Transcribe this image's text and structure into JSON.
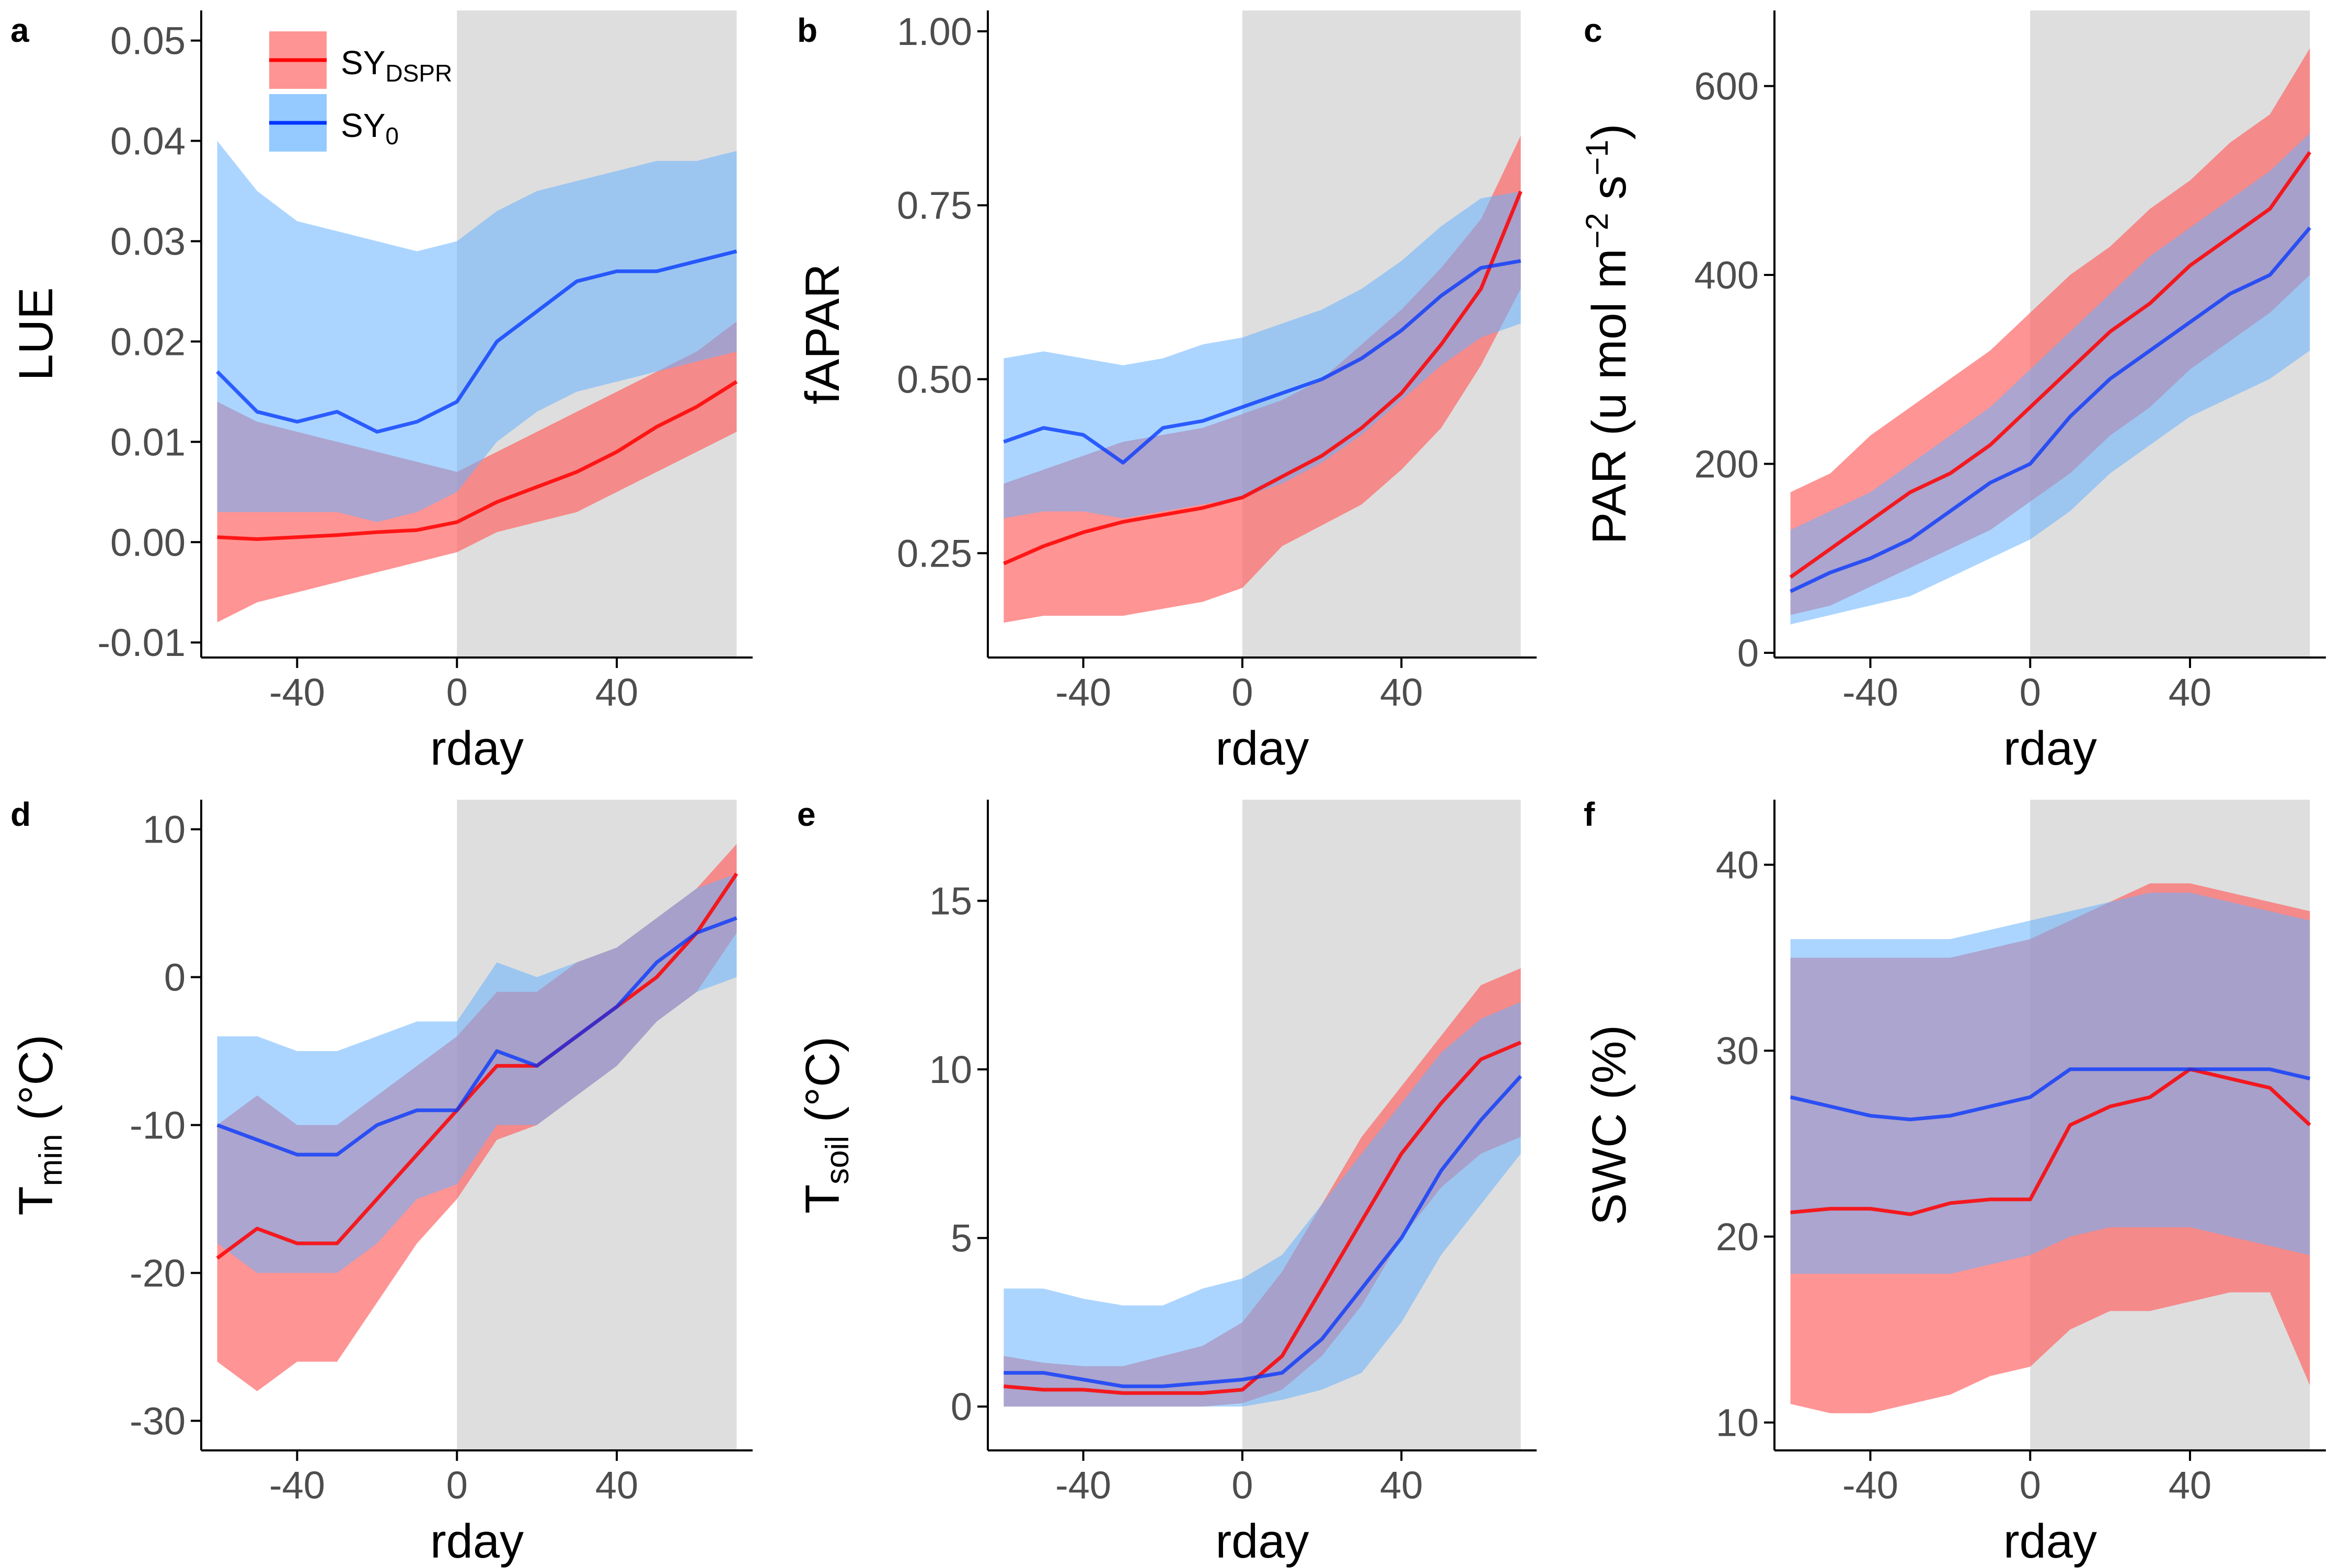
{
  "figure": {
    "colors": {
      "sy_dspr": "#ff0000",
      "sy_0": "#0033ff",
      "sy_dspr_band": "#ff6666",
      "sy_0_band": "#66b3ff",
      "shade": "#dedede",
      "axis": "#000000",
      "tick_text": "#4d4d4d"
    },
    "legend": {
      "sy_dspr_label": "SY",
      "sy_dspr_sub": "DSPR",
      "sy_0_label": "SY",
      "sy_0_sub": "0"
    }
  },
  "chart_data": [
    {
      "panel": "a",
      "type": "line",
      "xlabel": "rday",
      "ylabel": "LUE",
      "xlim": [
        -64,
        74
      ],
      "ylim": [
        -0.0115,
        0.053
      ],
      "shade": [
        0,
        70
      ],
      "xticks": [
        -40,
        0,
        40
      ],
      "xtick_labels": [
        "-40",
        "0",
        "40"
      ],
      "yticks": [
        -0.01,
        0,
        0.01,
        0.02,
        0.03,
        0.04,
        0.05
      ],
      "ytick_labels": [
        "-0.01",
        "0.00",
        "0.01",
        "0.02",
        "0.03",
        "0.04",
        "0.05"
      ],
      "grid": false,
      "legend_position": "top-left",
      "x": [
        -60,
        -50,
        -40,
        -30,
        -20,
        -10,
        0,
        10,
        20,
        30,
        40,
        50,
        60,
        70
      ],
      "series": [
        {
          "name": "SY_DSPR",
          "mean": [
            0.0005,
            0.0003,
            0.0005,
            0.0007,
            0.001,
            0.0012,
            0.002,
            0.004,
            0.0055,
            0.007,
            0.009,
            0.0115,
            0.0135,
            0.016
          ],
          "lower": [
            -0.008,
            -0.006,
            -0.005,
            -0.004,
            -0.003,
            -0.002,
            -0.001,
            0.001,
            0.002,
            0.003,
            0.005,
            0.007,
            0.009,
            0.011
          ],
          "upper": [
            0.014,
            0.012,
            0.011,
            0.01,
            0.009,
            0.008,
            0.007,
            0.009,
            0.011,
            0.013,
            0.015,
            0.017,
            0.019,
            0.022
          ]
        },
        {
          "name": "SY_0",
          "mean": [
            0.017,
            0.013,
            0.012,
            0.013,
            0.011,
            0.012,
            0.014,
            0.02,
            0.023,
            0.026,
            0.027,
            0.027,
            0.028,
            0.029
          ],
          "lower": [
            0.003,
            0.003,
            0.003,
            0.003,
            0.002,
            0.003,
            0.005,
            0.01,
            0.013,
            0.015,
            0.016,
            0.017,
            0.018,
            0.019
          ],
          "upper": [
            0.04,
            0.035,
            0.032,
            0.031,
            0.03,
            0.029,
            0.03,
            0.033,
            0.035,
            0.036,
            0.037,
            0.038,
            0.038,
            0.039
          ]
        }
      ]
    },
    {
      "panel": "b",
      "type": "line",
      "xlabel": "rday",
      "ylabel": "fAPAR",
      "xlim": [
        -64,
        74
      ],
      "ylim": [
        0.1,
        1.03
      ],
      "shade": [
        0,
        70
      ],
      "xticks": [
        -40,
        0,
        40
      ],
      "xtick_labels": [
        "-40",
        "0",
        "40"
      ],
      "yticks": [
        0.25,
        0.5,
        0.75,
        1.0
      ],
      "ytick_labels": [
        "0.25",
        "0.50",
        "0.75",
        "1.00"
      ],
      "grid": false,
      "x": [
        -60,
        -50,
        -40,
        -30,
        -20,
        -10,
        0,
        10,
        20,
        30,
        40,
        50,
        60,
        70
      ],
      "series": [
        {
          "name": "SY_DSPR",
          "mean": [
            0.235,
            0.26,
            0.28,
            0.295,
            0.305,
            0.315,
            0.33,
            0.36,
            0.39,
            0.43,
            0.48,
            0.55,
            0.63,
            0.77
          ],
          "lower": [
            0.15,
            0.16,
            0.16,
            0.16,
            0.17,
            0.18,
            0.2,
            0.26,
            0.29,
            0.32,
            0.37,
            0.43,
            0.52,
            0.63
          ],
          "upper": [
            0.35,
            0.37,
            0.39,
            0.41,
            0.42,
            0.43,
            0.45,
            0.47,
            0.5,
            0.55,
            0.6,
            0.66,
            0.73,
            0.85
          ]
        },
        {
          "name": "SY_0",
          "mean": [
            0.41,
            0.43,
            0.42,
            0.38,
            0.43,
            0.44,
            0.46,
            0.48,
            0.5,
            0.53,
            0.57,
            0.62,
            0.66,
            0.67
          ],
          "lower": [
            0.3,
            0.31,
            0.31,
            0.3,
            0.31,
            0.32,
            0.33,
            0.35,
            0.38,
            0.42,
            0.47,
            0.52,
            0.56,
            0.58
          ],
          "upper": [
            0.53,
            0.54,
            0.53,
            0.52,
            0.53,
            0.55,
            0.56,
            0.58,
            0.6,
            0.63,
            0.67,
            0.72,
            0.76,
            0.77
          ]
        }
      ]
    },
    {
      "panel": "c",
      "type": "line",
      "xlabel": "rday",
      "ylabel": "PAR (u mol m⁻² s⁻¹)",
      "xlim": [
        -64,
        74
      ],
      "ylim": [
        -5,
        680
      ],
      "shade": [
        0,
        70
      ],
      "xticks": [
        -40,
        0,
        40
      ],
      "xtick_labels": [
        "-40",
        "0",
        "40"
      ],
      "yticks": [
        0,
        200,
        400,
        600
      ],
      "ytick_labels": [
        "0",
        "200",
        "400",
        "600"
      ],
      "grid": false,
      "x": [
        -60,
        -50,
        -40,
        -30,
        -20,
        -10,
        0,
        10,
        20,
        30,
        40,
        50,
        60,
        70
      ],
      "series": [
        {
          "name": "SY_DSPR",
          "mean": [
            80,
            110,
            140,
            170,
            190,
            220,
            260,
            300,
            340,
            370,
            410,
            440,
            470,
            530
          ],
          "lower": [
            40,
            50,
            70,
            90,
            110,
            130,
            160,
            190,
            230,
            260,
            300,
            330,
            360,
            400
          ],
          "upper": [
            170,
            190,
            230,
            260,
            290,
            320,
            360,
            400,
            430,
            470,
            500,
            540,
            570,
            640
          ]
        },
        {
          "name": "SY_0",
          "mean": [
            65,
            85,
            100,
            120,
            150,
            180,
            200,
            250,
            290,
            320,
            350,
            380,
            400,
            450
          ],
          "lower": [
            30,
            40,
            50,
            60,
            80,
            100,
            120,
            150,
            190,
            220,
            250,
            270,
            290,
            320
          ],
          "upper": [
            130,
            150,
            170,
            200,
            230,
            260,
            300,
            340,
            380,
            420,
            450,
            480,
            510,
            550
          ]
        }
      ]
    },
    {
      "panel": "d",
      "type": "line",
      "xlabel": "rday",
      "ylabel": "T_min (°C)",
      "xlim": [
        -64,
        74
      ],
      "ylim": [
        -32,
        12
      ],
      "shade": [
        0,
        70
      ],
      "xticks": [
        -40,
        0,
        40
      ],
      "xtick_labels": [
        "-40",
        "0",
        "40"
      ],
      "yticks": [
        -30,
        -20,
        -10,
        0,
        10
      ],
      "ytick_labels": [
        "-30",
        "-20",
        "-10",
        "0",
        "10"
      ],
      "grid": false,
      "x": [
        -60,
        -50,
        -40,
        -30,
        -20,
        -10,
        0,
        10,
        20,
        30,
        40,
        50,
        60,
        70
      ],
      "series": [
        {
          "name": "SY_DSPR",
          "mean": [
            -19,
            -17,
            -18,
            -18,
            -15,
            -12,
            -9,
            -6,
            -6,
            -4,
            -2,
            0,
            3,
            7
          ],
          "lower": [
            -26,
            -28,
            -26,
            -26,
            -22,
            -18,
            -15,
            -11,
            -10,
            -8,
            -6,
            -3,
            -1,
            3
          ],
          "upper": [
            -10,
            -8,
            -10,
            -10,
            -8,
            -6,
            -4,
            -1,
            -1,
            1,
            2,
            4,
            6,
            9
          ]
        },
        {
          "name": "SY_0",
          "mean": [
            -10,
            -11,
            -12,
            -12,
            -10,
            -9,
            -9,
            -5,
            -6,
            -4,
            -2,
            1,
            3,
            4
          ],
          "lower": [
            -18,
            -20,
            -20,
            -20,
            -18,
            -15,
            -14,
            -10,
            -10,
            -8,
            -6,
            -3,
            -1,
            0
          ],
          "upper": [
            -4,
            -4,
            -5,
            -5,
            -4,
            -3,
            -3,
            1,
            0,
            1,
            2,
            4,
            6,
            7
          ]
        }
      ]
    },
    {
      "panel": "e",
      "type": "line",
      "xlabel": "rday",
      "ylabel": "T_soil (°C)",
      "xlim": [
        -64,
        74
      ],
      "ylim": [
        -1.3,
        18
      ],
      "shade": [
        0,
        70
      ],
      "xticks": [
        -40,
        0,
        40
      ],
      "xtick_labels": [
        "-40",
        "0",
        "40"
      ],
      "yticks": [
        0,
        5,
        10,
        15
      ],
      "ytick_labels": [
        "0",
        "5",
        "10",
        "15"
      ],
      "grid": false,
      "x": [
        -60,
        -50,
        -40,
        -30,
        -20,
        -10,
        0,
        10,
        20,
        30,
        40,
        50,
        60,
        70
      ],
      "series": [
        {
          "name": "SY_DSPR",
          "mean": [
            0.6,
            0.5,
            0.5,
            0.4,
            0.4,
            0.4,
            0.5,
            1.5,
            3.5,
            5.5,
            7.5,
            9.0,
            10.3,
            10.8
          ],
          "lower": [
            0.0,
            0.0,
            0.0,
            0.0,
            0.0,
            0.0,
            0.1,
            0.5,
            1.5,
            3.0,
            5.0,
            6.5,
            7.5,
            8.0
          ],
          "upper": [
            1.5,
            1.3,
            1.2,
            1.2,
            1.5,
            1.8,
            2.5,
            4.0,
            6.0,
            8.0,
            9.5,
            11.0,
            12.5,
            13.0
          ]
        },
        {
          "name": "SY_0",
          "mean": [
            1.0,
            1.0,
            0.8,
            0.6,
            0.6,
            0.7,
            0.8,
            1.0,
            2.0,
            3.5,
            5.0,
            7.0,
            8.5,
            9.8
          ],
          "lower": [
            0.0,
            0.0,
            0.0,
            0.0,
            0.0,
            0.0,
            0.0,
            0.2,
            0.5,
            1.0,
            2.5,
            4.5,
            6.0,
            7.5
          ],
          "upper": [
            3.5,
            3.5,
            3.2,
            3.0,
            3.0,
            3.5,
            3.8,
            4.5,
            6.0,
            7.5,
            9.0,
            10.5,
            11.5,
            12.0
          ]
        }
      ]
    },
    {
      "panel": "f",
      "type": "line",
      "xlabel": "rday",
      "ylabel": "SWC (%)",
      "xlim": [
        -64,
        74
      ],
      "ylim": [
        8.5,
        43.5
      ],
      "shade": [
        0,
        70
      ],
      "xticks": [
        -40,
        0,
        40
      ],
      "xtick_labels": [
        "-40",
        "0",
        "40"
      ],
      "yticks": [
        10,
        20,
        30,
        40
      ],
      "ytick_labels": [
        "10",
        "20",
        "30",
        "40"
      ],
      "grid": false,
      "x": [
        -60,
        -50,
        -40,
        -30,
        -20,
        -10,
        0,
        10,
        20,
        30,
        40,
        50,
        60,
        70
      ],
      "series": [
        {
          "name": "SY_DSPR",
          "mean": [
            21.3,
            21.5,
            21.5,
            21.2,
            21.8,
            22.0,
            22.0,
            26.0,
            27.0,
            27.5,
            29.0,
            28.5,
            28.0,
            26.0
          ],
          "lower": [
            11.0,
            10.5,
            10.5,
            11.0,
            11.5,
            12.5,
            13.0,
            15.0,
            16.0,
            16.0,
            16.5,
            17.0,
            17.0,
            12.0
          ],
          "upper": [
            35.0,
            35.0,
            35.0,
            35.0,
            35.0,
            35.5,
            36.0,
            37.0,
            38.0,
            39.0,
            39.0,
            38.5,
            38.0,
            37.5
          ]
        },
        {
          "name": "SY_0",
          "mean": [
            27.5,
            27.0,
            26.5,
            26.3,
            26.5,
            27.0,
            27.5,
            29.0,
            29.0,
            29.0,
            29.0,
            29.0,
            29.0,
            28.5
          ],
          "lower": [
            18.0,
            18.0,
            18.0,
            18.0,
            18.0,
            18.5,
            19.0,
            20.0,
            20.5,
            20.5,
            20.5,
            20.0,
            19.5,
            19.0
          ],
          "upper": [
            36.0,
            36.0,
            36.0,
            36.0,
            36.0,
            36.5,
            37.0,
            37.5,
            38.0,
            38.5,
            38.5,
            38.0,
            37.5,
            37.0
          ]
        }
      ]
    }
  ]
}
